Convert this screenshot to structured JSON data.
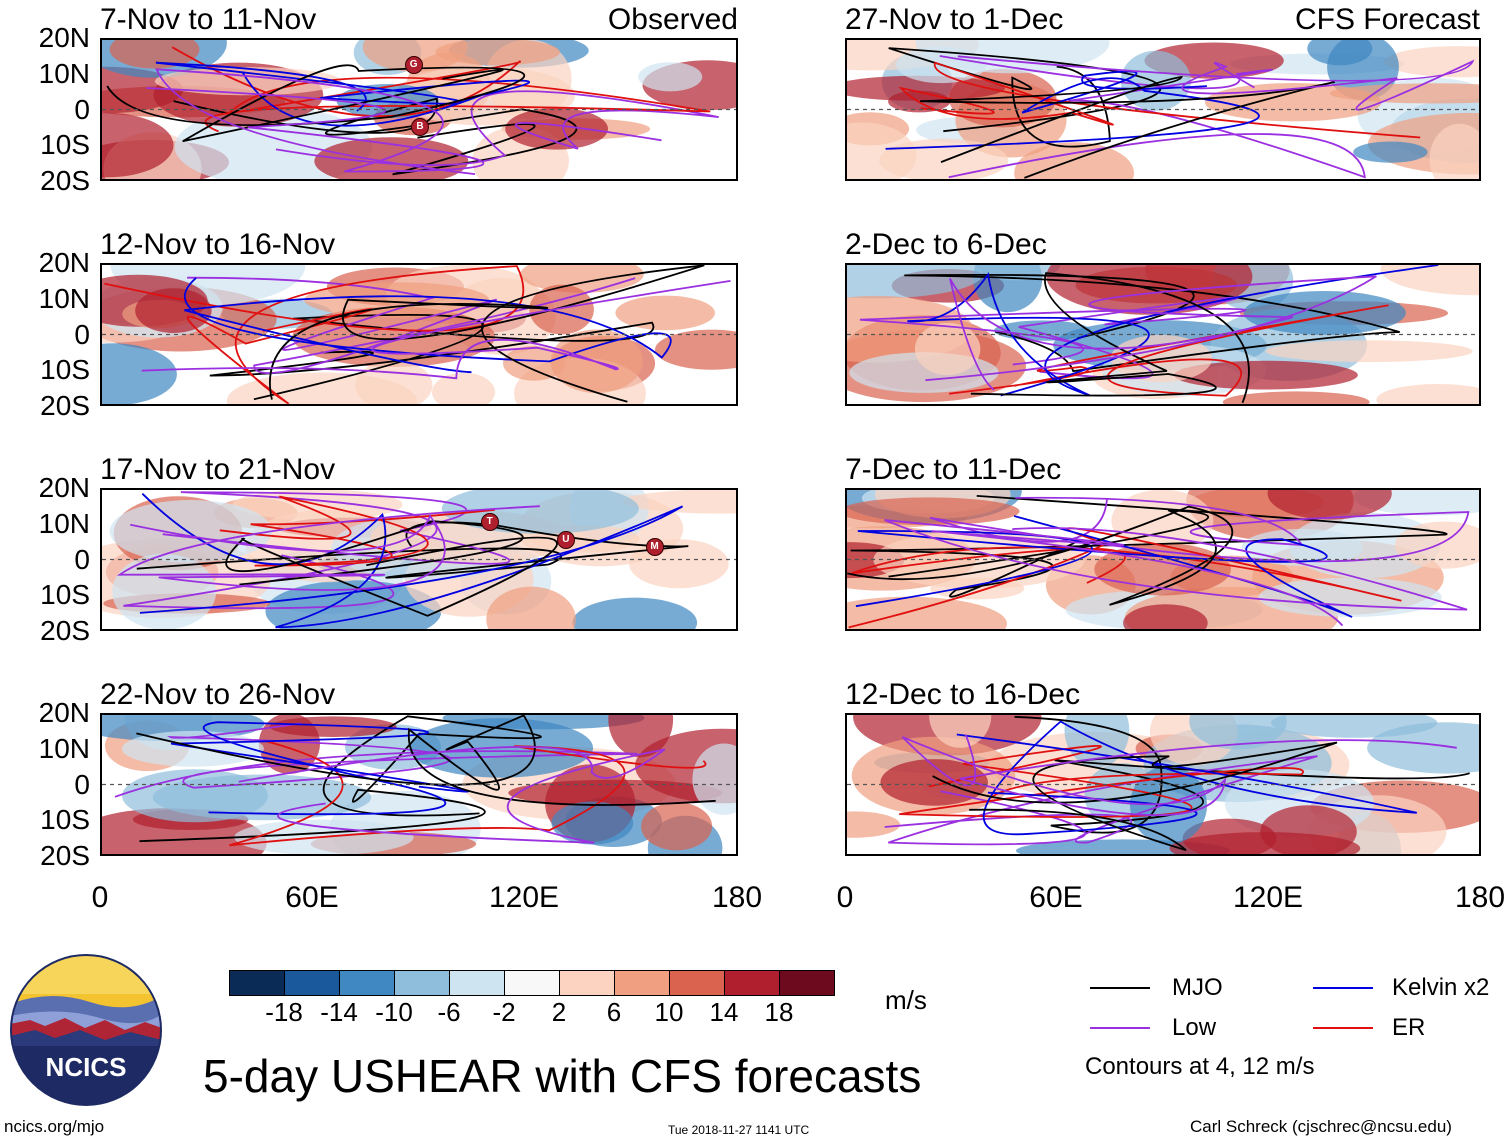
{
  "header": {
    "observed_label": "Observed",
    "forecast_label": "CFS Forecast"
  },
  "lat_labels": [
    "20N",
    "10N",
    "0",
    "10S",
    "20S"
  ],
  "lon_labels": [
    "0",
    "60E",
    "120E",
    "180"
  ],
  "panels": {
    "left": [
      {
        "title": "7-Nov to 11-Nov",
        "storms": [
          "G",
          "B"
        ]
      },
      {
        "title": "12-Nov to 16-Nov",
        "storms": []
      },
      {
        "title": "17-Nov to 21-Nov",
        "storms": [
          "T",
          "U",
          "M"
        ]
      },
      {
        "title": "22-Nov to 26-Nov",
        "storms": []
      }
    ],
    "right": [
      {
        "title": "27-Nov to 1-Dec"
      },
      {
        "title": "2-Dec to 6-Dec"
      },
      {
        "title": "7-Dec to 11-Dec"
      },
      {
        "title": "12-Dec to 16-Dec"
      }
    ]
  },
  "colorbar": {
    "ticks": [
      "-18",
      "-14",
      "-10",
      "-6",
      "-2",
      "2",
      "6",
      "10",
      "14",
      "18"
    ],
    "colors": [
      "#0b2b57",
      "#1a5a9c",
      "#3f88c2",
      "#8fbedc",
      "#cfe4f1",
      "#f8f8f8",
      "#fbd3c0",
      "#f0a080",
      "#d9634e",
      "#b01f2d",
      "#6e0a1e"
    ],
    "unit": "m/s"
  },
  "legend": {
    "items": [
      {
        "label": "MJO",
        "color": "#000000"
      },
      {
        "label": "Kelvin x2",
        "color": "#0000e0"
      },
      {
        "label": "Low",
        "color": "#9b30e0"
      },
      {
        "label": "ER",
        "color": "#e01010"
      }
    ],
    "contours_note": "Contours at 4, 12 m/s"
  },
  "logo": {
    "text": "NCICS"
  },
  "title": "5-day USHEAR with CFS forecasts",
  "footer": {
    "url": "ncics.org/mjo",
    "timestamp": "Tue 2018-11-27 1141 UTC",
    "author": "Carl Schreck (cjschrec@ncsu.edu)"
  }
}
